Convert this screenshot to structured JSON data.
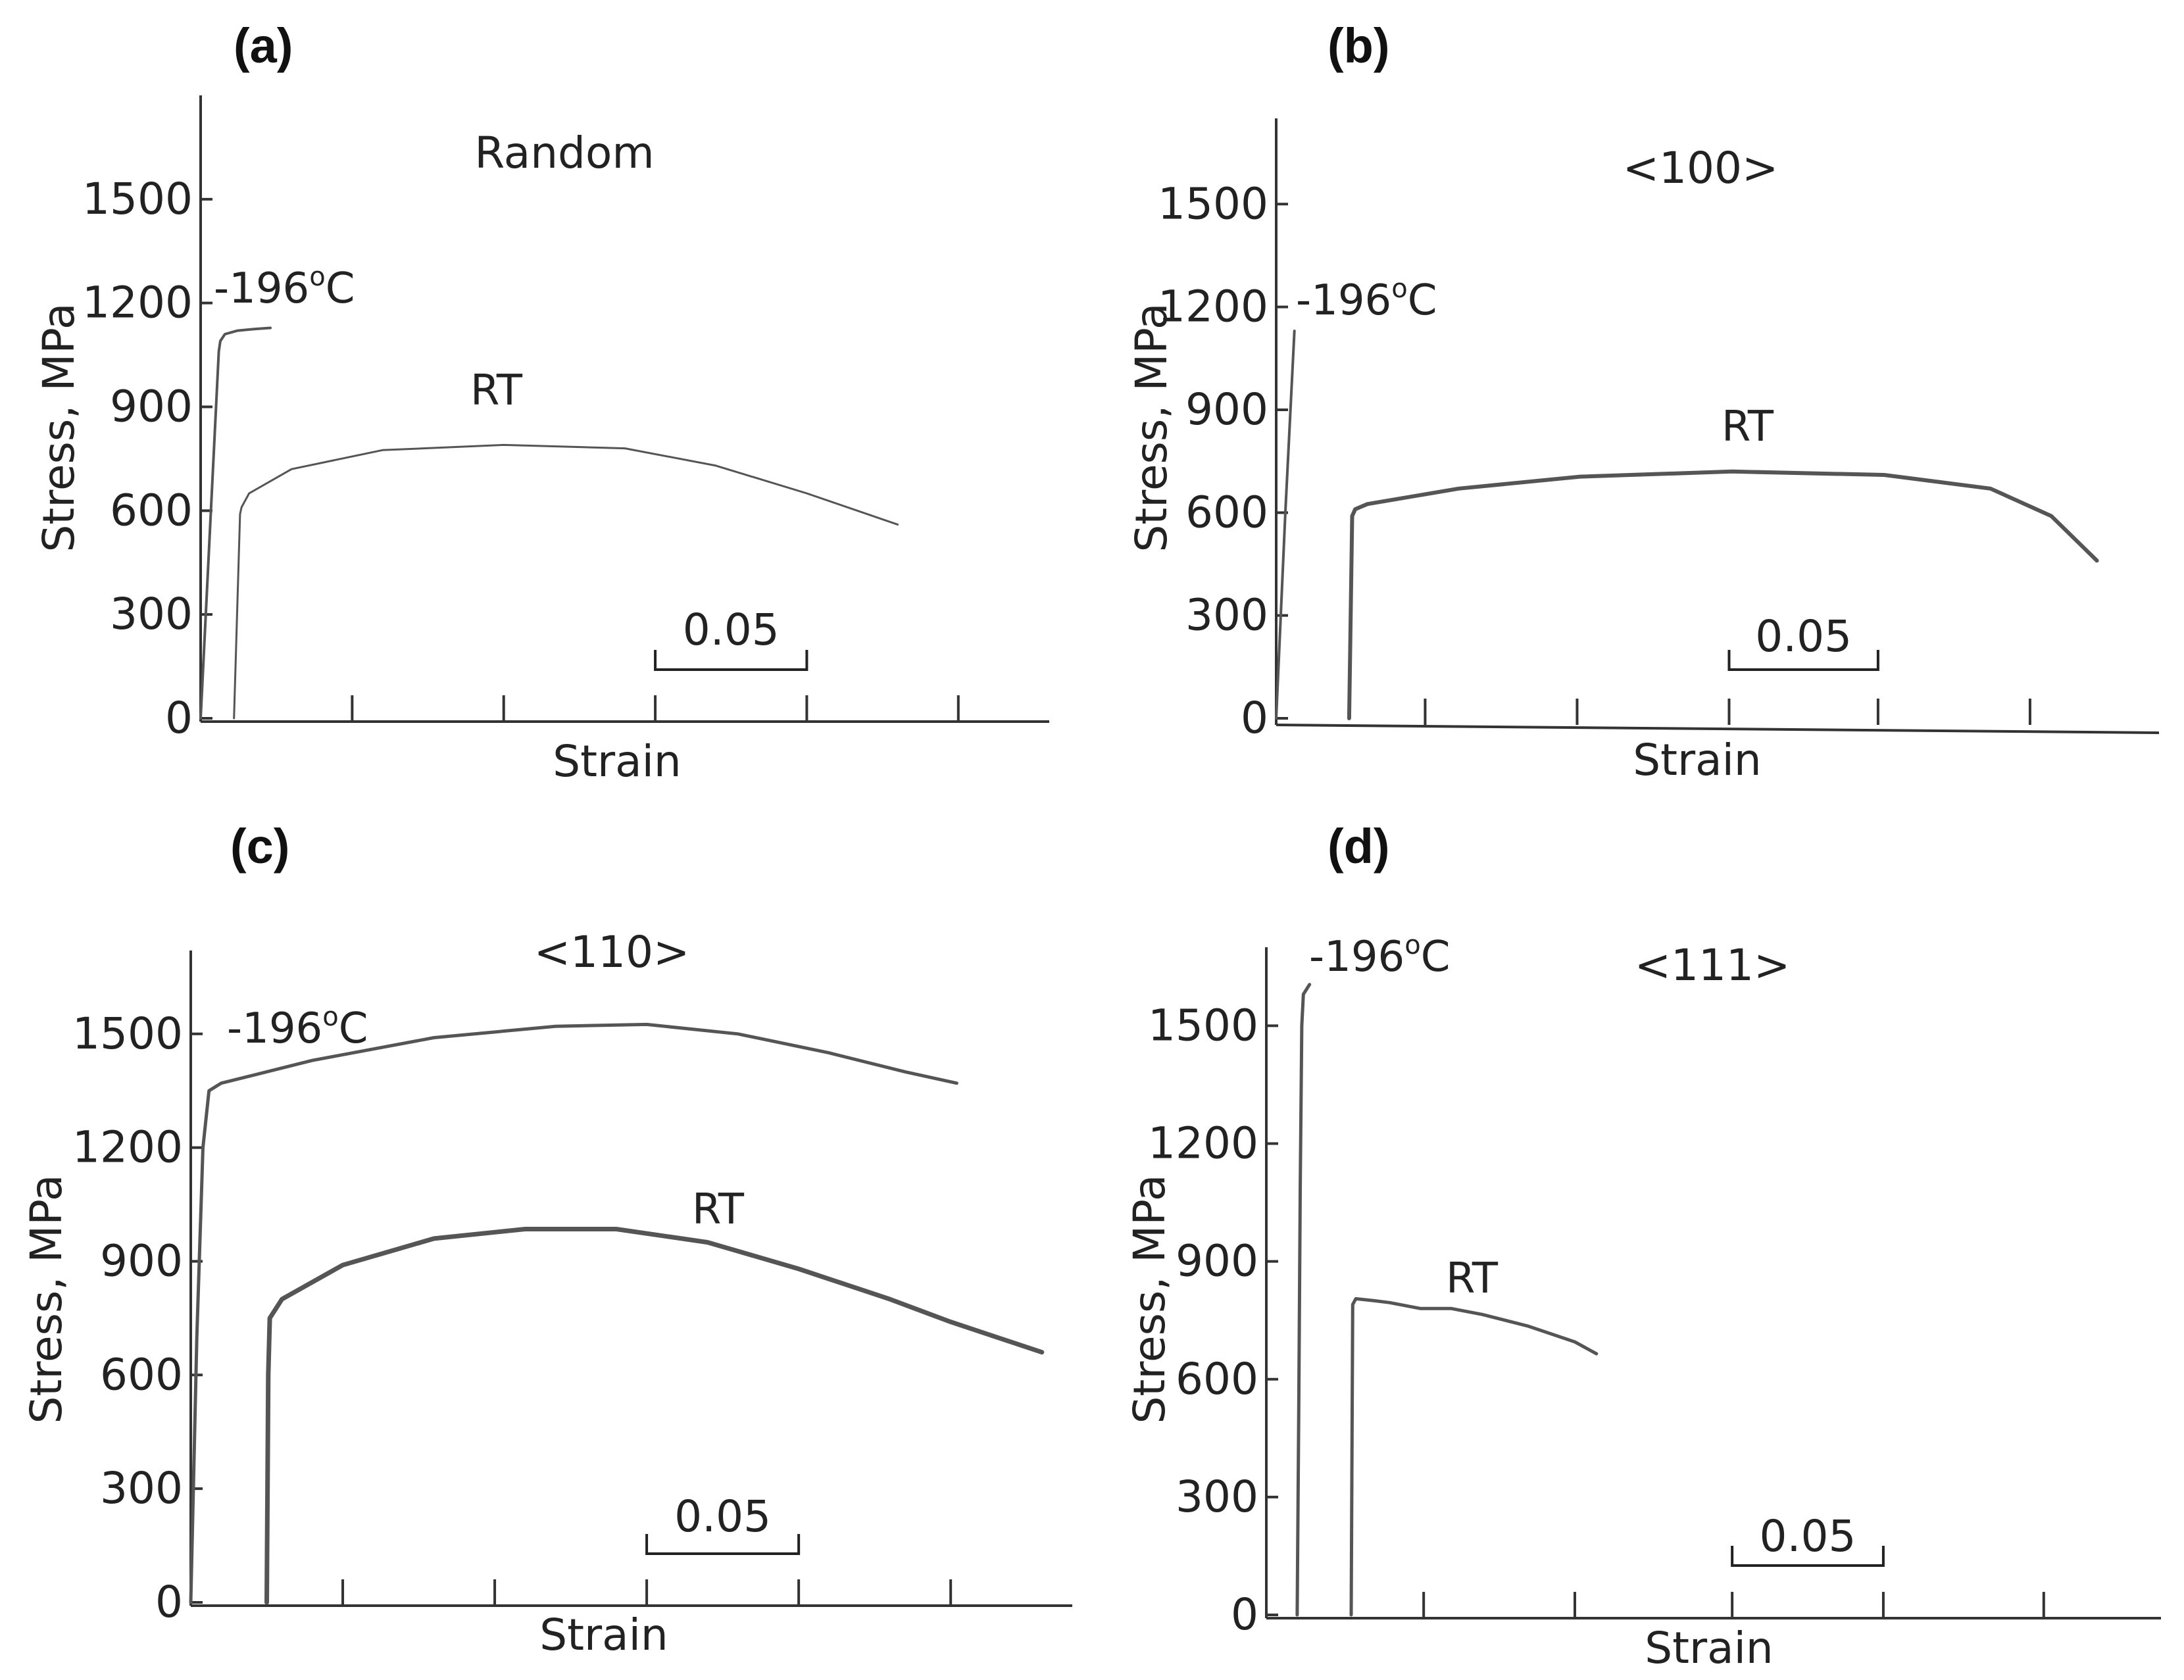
{
  "chart_data": [
    {
      "type": "line",
      "panel_label": "(a)",
      "title": "Random",
      "xlabel": "Strain",
      "ylabel": "Stress, MPa",
      "y_ticks": [
        "0",
        "300",
        "600",
        "900",
        "1200",
        "1500"
      ],
      "ylim": [
        0,
        1800
      ],
      "xlim": [
        0,
        0.28
      ],
      "scale_bar_label": "0.05",
      "scale_bar": [
        0.15,
        0.2
      ],
      "x_minor_ticks": [
        0.05,
        0.1,
        0.15,
        0.2,
        0.25
      ],
      "series": [
        {
          "name": "-196oC",
          "label_main": "-196",
          "label_sup": "o",
          "label_tail": "C",
          "x": [
            0.0,
            0.006,
            0.0065,
            0.008,
            0.012,
            0.018,
            0.023
          ],
          "y": [
            0,
            1060,
            1090,
            1110,
            1120,
            1125,
            1128
          ]
        },
        {
          "name": "RT",
          "label_main": "RT",
          "label_sup": "",
          "label_tail": "",
          "x": [
            0.011,
            0.013,
            0.0135,
            0.016,
            0.03,
            0.06,
            0.1,
            0.14,
            0.17,
            0.2,
            0.23
          ],
          "y": [
            0,
            590,
            610,
            650,
            720,
            775,
            790,
            780,
            730,
            650,
            560
          ]
        }
      ]
    },
    {
      "type": "line",
      "panel_label": "(b)",
      "title": "<100>",
      "xlabel": "Strain",
      "ylabel": "Stress, MPa",
      "y_ticks": [
        "0",
        "300",
        "600",
        "900",
        "1200",
        "1500"
      ],
      "ylim": [
        0,
        1750
      ],
      "xlim": [
        0,
        0.29
      ],
      "scale_bar_label": "0.05",
      "scale_bar": [
        0.149,
        0.198
      ],
      "x_minor_ticks": [
        0.049,
        0.099,
        0.149,
        0.198,
        0.248
      ],
      "series": [
        {
          "name": "-196oC",
          "label_main": "-196",
          "label_sup": "o",
          "label_tail": "C",
          "x": [
            0.0,
            0.003,
            0.006
          ],
          "y": [
            0,
            600,
            1130
          ]
        },
        {
          "name": "RT",
          "label_main": "RT",
          "label_sup": "",
          "label_tail": "",
          "x": [
            0.024,
            0.025,
            0.026,
            0.03,
            0.06,
            0.1,
            0.15,
            0.2,
            0.235,
            0.255,
            0.27
          ],
          "y": [
            0,
            590,
            610,
            625,
            670,
            705,
            720,
            710,
            670,
            590,
            460
          ]
        }
      ]
    },
    {
      "type": "line",
      "panel_label": "(c)",
      "title": "<110>",
      "xlabel": "Strain",
      "ylabel": "Stress, MPa",
      "y_ticks": [
        "0",
        "300",
        "600",
        "900",
        "1200",
        "1500"
      ],
      "ylim": [
        0,
        1720
      ],
      "xlim": [
        0,
        0.29
      ],
      "scale_bar_label": "0.05",
      "scale_bar": [
        0.15,
        0.2
      ],
      "x_minor_ticks": [
        0.05,
        0.1,
        0.15,
        0.2,
        0.25
      ],
      "series": [
        {
          "name": "-196oC",
          "label_main": "-196",
          "label_sup": "o",
          "label_tail": "C",
          "x": [
            0.0,
            0.002,
            0.004,
            0.006,
            0.01,
            0.04,
            0.08,
            0.12,
            0.15,
            0.18,
            0.21,
            0.235,
            0.252
          ],
          "y": [
            0,
            700,
            1200,
            1350,
            1370,
            1430,
            1490,
            1520,
            1525,
            1500,
            1450,
            1400,
            1370
          ]
        },
        {
          "name": "RT",
          "label_main": "RT",
          "label_sup": "",
          "label_tail": "",
          "x": [
            0.025,
            0.0255,
            0.026,
            0.03,
            0.05,
            0.08,
            0.11,
            0.14,
            0.17,
            0.2,
            0.23,
            0.25,
            0.28
          ],
          "y": [
            0,
            600,
            750,
            800,
            890,
            960,
            985,
            985,
            950,
            880,
            800,
            740,
            660
          ]
        }
      ]
    },
    {
      "type": "line",
      "panel_label": "(d)",
      "title": "<111>",
      "xlabel": "Strain",
      "ylabel": "Stress, MPa",
      "y_ticks": [
        "0",
        "300",
        "600",
        "900",
        "1200",
        "1500"
      ],
      "ylim": [
        0,
        1700
      ],
      "xlim": [
        0,
        0.29
      ],
      "scale_bar_label": "0.05",
      "scale_bar": [
        0.151,
        0.2
      ],
      "x_minor_ticks": [
        0.051,
        0.1,
        0.151,
        0.2,
        0.252
      ],
      "series": [
        {
          "name": "-196oC",
          "label_main": "-196",
          "label_sup": "o",
          "label_tail": "C",
          "x": [
            0.01,
            0.0105,
            0.011,
            0.0115,
            0.012,
            0.014
          ],
          "y": [
            0,
            500,
            1100,
            1500,
            1580,
            1605
          ]
        },
        {
          "name": "RT",
          "label_main": "RT",
          "label_sup": "",
          "label_tail": "",
          "x": [
            0.0275,
            0.028,
            0.029,
            0.035,
            0.04,
            0.05,
            0.06,
            0.07,
            0.085,
            0.1,
            0.107
          ],
          "y": [
            0,
            790,
            805,
            800,
            795,
            780,
            780,
            765,
            735,
            695,
            665
          ]
        }
      ]
    }
  ]
}
